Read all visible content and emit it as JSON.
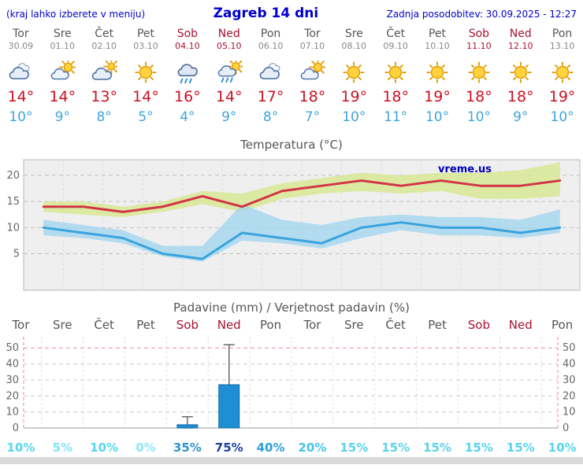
{
  "header": {
    "hint": "(kraj lahko izberete v meniju)",
    "title": "Zagreb 14 dni",
    "updated": "Zadnja posodobitev: 30.09.2025 - 12:27"
  },
  "watermark": "vreme.us",
  "colors": {
    "link_blue": "#0000cc",
    "red_day": "#a81232",
    "tmax_red": "#cc1122",
    "tmin_blue": "#3fa6dc",
    "max_line": "#d23545",
    "min_line": "#3aa3dc",
    "max_band": "#d9e89a",
    "min_band": "#9fd4ef",
    "bar_blue": "#1e8fd5"
  },
  "days": [
    {
      "name": "Tor",
      "date": "30.09",
      "red": false,
      "icon": "cloudy",
      "tmax": "14°",
      "tmin": "10°"
    },
    {
      "name": "Sre",
      "date": "01.10",
      "red": false,
      "icon": "partly",
      "tmax": "14°",
      "tmin": "9°"
    },
    {
      "name": "Čet",
      "date": "02.10",
      "red": false,
      "icon": "mostly-cloudy",
      "tmax": "13°",
      "tmin": "8°"
    },
    {
      "name": "Pet",
      "date": "03.10",
      "red": false,
      "icon": "sunny",
      "tmax": "14°",
      "tmin": "5°"
    },
    {
      "name": "Sob",
      "date": "04.10",
      "red": true,
      "icon": "rain",
      "tmax": "16°",
      "tmin": "4°"
    },
    {
      "name": "Ned",
      "date": "05.10",
      "red": true,
      "icon": "sun-rain",
      "tmax": "14°",
      "tmin": "9°"
    },
    {
      "name": "Pon",
      "date": "06.10",
      "red": false,
      "icon": "cloudy",
      "tmax": "17°",
      "tmin": "8°"
    },
    {
      "name": "Tor",
      "date": "07.10",
      "red": false,
      "icon": "partly",
      "tmax": "18°",
      "tmin": "7°"
    },
    {
      "name": "Sre",
      "date": "08.10",
      "red": false,
      "icon": "sunny",
      "tmax": "19°",
      "tmin": "10°"
    },
    {
      "name": "Čet",
      "date": "09.10",
      "red": false,
      "icon": "sunny",
      "tmax": "18°",
      "tmin": "11°"
    },
    {
      "name": "Pet",
      "date": "10.10",
      "red": false,
      "icon": "sunny",
      "tmax": "19°",
      "tmin": "10°"
    },
    {
      "name": "Sob",
      "date": "11.10",
      "red": true,
      "icon": "sunny",
      "tmax": "18°",
      "tmin": "10°"
    },
    {
      "name": "Ned",
      "date": "12.10",
      "red": true,
      "icon": "sunny",
      "tmax": "18°",
      "tmin": "9°"
    },
    {
      "name": "Pon",
      "date": "13.10",
      "red": false,
      "icon": "sunny",
      "tmax": "19°",
      "tmin": "10°"
    }
  ],
  "precip_day_labels": [
    {
      "label": "Tor",
      "red": false
    },
    {
      "label": "Sre",
      "red": false
    },
    {
      "label": "Čet",
      "red": false
    },
    {
      "label": "Pet",
      "red": false
    },
    {
      "label": "Sob",
      "red": true
    },
    {
      "label": "Ned",
      "red": true
    },
    {
      "label": "Pon",
      "red": false
    },
    {
      "label": "Tor",
      "red": false
    },
    {
      "label": "Sre",
      "red": false
    },
    {
      "label": "Čet",
      "red": false
    },
    {
      "label": "Pet",
      "red": false
    },
    {
      "label": "Sob",
      "red": true
    },
    {
      "label": "Ned",
      "red": true
    },
    {
      "label": "Pon",
      "red": false
    }
  ],
  "precip_probabilities": [
    {
      "label": "10%",
      "color": "#55d6ee"
    },
    {
      "label": "5%",
      "color": "#82e4f4"
    },
    {
      "label": "10%",
      "color": "#55d6ee"
    },
    {
      "label": "0%",
      "color": "#8ce8f6"
    },
    {
      "label": "35%",
      "color": "#2f93cf"
    },
    {
      "label": "75%",
      "color": "#1b3f9e"
    },
    {
      "label": "40%",
      "color": "#2f9fd8"
    },
    {
      "label": "20%",
      "color": "#46c4e6"
    },
    {
      "label": "15%",
      "color": "#5ad2ec"
    },
    {
      "label": "15%",
      "color": "#5ad2ec"
    },
    {
      "label": "15%",
      "color": "#5ad2ec"
    },
    {
      "label": "15%",
      "color": "#5ad2ec"
    },
    {
      "label": "15%",
      "color": "#5ad2ec"
    },
    {
      "label": "10%",
      "color": "#55d6ee"
    }
  ],
  "chart_data": [
    {
      "type": "line",
      "title": "Temperatura (°C)",
      "x": [
        "Tor 30.09",
        "Sre 01.10",
        "Čet 02.10",
        "Pet 03.10",
        "Sob 04.10",
        "Ned 05.10",
        "Pon 06.10",
        "Tor 07.10",
        "Sre 08.10",
        "Čet 09.10",
        "Pet 10.10",
        "Sob 11.10",
        "Ned 12.10",
        "Pon 13.10"
      ],
      "ylim": [
        -2,
        23
      ],
      "yticks": [
        5,
        10,
        15,
        20
      ],
      "grid": true,
      "series": {
        "max": [
          14,
          14,
          13,
          14,
          16,
          14,
          17,
          18,
          19,
          18,
          19,
          18,
          18,
          19
        ],
        "min": [
          10,
          9,
          8,
          5,
          4,
          9,
          8,
          7,
          10,
          11,
          10,
          10,
          9,
          10
        ],
        "max_high": [
          15,
          15,
          14,
          15,
          17,
          16.5,
          18.5,
          19.5,
          20.5,
          20,
          20.5,
          20.5,
          21,
          22.5
        ],
        "max_low": [
          13,
          12.5,
          12,
          13,
          14.5,
          13,
          15.5,
          16.5,
          17,
          16.5,
          17,
          15.5,
          15.5,
          16
        ],
        "min_high": [
          11.5,
          10.5,
          9.5,
          6.5,
          6.5,
          14.5,
          11.5,
          10.5,
          12,
          12.5,
          12,
          12,
          11.5,
          13.5
        ],
        "min_low": [
          8.5,
          8,
          7,
          4.5,
          3.5,
          7.5,
          7,
          6,
          8,
          9.5,
          8.5,
          8.5,
          8,
          9
        ]
      }
    },
    {
      "type": "bar",
      "title": "Padavine (mm) / Verjetnost padavin (%)",
      "categories": [
        "Tor",
        "Sre",
        "Čet",
        "Pet",
        "Sob",
        "Ned",
        "Pon",
        "Tor",
        "Sre",
        "Čet",
        "Pet",
        "Sob",
        "Ned",
        "Pon"
      ],
      "values": [
        0,
        0,
        0,
        0,
        2,
        27,
        0,
        0,
        0,
        0,
        0,
        0,
        0,
        0
      ],
      "whisker_low": [
        null,
        null,
        null,
        null,
        0,
        2,
        null,
        null,
        null,
        null,
        null,
        null,
        null,
        null
      ],
      "whisker_high": [
        null,
        null,
        null,
        null,
        7,
        52,
        null,
        null,
        null,
        null,
        null,
        null,
        null,
        null
      ],
      "probabilities": [
        10,
        5,
        10,
        0,
        35,
        75,
        40,
        20,
        15,
        15,
        15,
        15,
        15,
        10
      ],
      "ylim": [
        0,
        57
      ],
      "yticks": [
        0,
        10,
        20,
        30,
        40,
        50
      ]
    }
  ]
}
